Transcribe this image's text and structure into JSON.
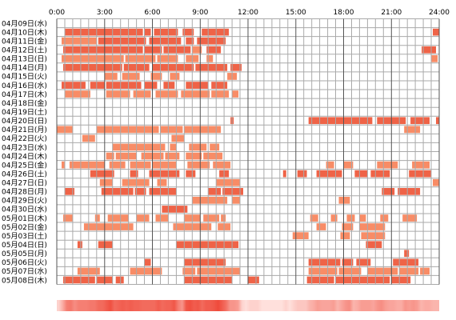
{
  "chart_data": {
    "type": "heatmap",
    "x_ticks": [
      "0:00",
      "3:00",
      "6:00",
      "9:00",
      "12:00",
      "15:00",
      "18:00",
      "21:00",
      "24:00"
    ],
    "x_range_hours": [
      0,
      24
    ],
    "grid": true,
    "colors": {
      "dark": "#ef6347",
      "light": "#f88c66",
      "grid_major": "#555555",
      "grid_minor": "#aaaaaa",
      "density_base": "#ffe0dc",
      "density_peak": "#ef4a3a"
    },
    "rows": [
      {
        "date": "04月09日(水)",
        "segments": []
      },
      {
        "date": "04月10日(木)",
        "segments": [
          [
            0.5,
            5.4,
            "dark"
          ],
          [
            5.5,
            5.9,
            "dark"
          ],
          [
            6.1,
            7.6,
            "dark"
          ],
          [
            7.9,
            8.6,
            "dark"
          ],
          [
            9.1,
            10.8,
            "dark"
          ],
          [
            23.6,
            24.0,
            "dark"
          ]
        ]
      },
      {
        "date": "04月11日(金)",
        "segments": [
          [
            0.3,
            2.5,
            "light"
          ],
          [
            2.6,
            5.6,
            "dark"
          ],
          [
            5.8,
            7.8,
            "dark"
          ],
          [
            8.1,
            8.6,
            "dark"
          ],
          [
            8.8,
            10.6,
            "dark"
          ]
        ]
      },
      {
        "date": "04月12日(土)",
        "segments": [
          [
            0.4,
            5.4,
            "dark"
          ],
          [
            5.5,
            6.6,
            "dark"
          ],
          [
            6.7,
            8.4,
            "dark"
          ],
          [
            8.5,
            9.1,
            "light"
          ],
          [
            9.4,
            10.3,
            "dark"
          ],
          [
            22.9,
            23.8,
            "dark"
          ]
        ]
      },
      {
        "date": "04月13日(日)",
        "segments": [
          [
            0.3,
            4.2,
            "light"
          ],
          [
            4.3,
            6.2,
            "light"
          ],
          [
            6.3,
            7.6,
            "light"
          ],
          [
            8.1,
            8.9,
            "light"
          ],
          [
            9.4,
            9.8,
            "light"
          ],
          [
            23.5,
            23.9,
            "light"
          ]
        ]
      },
      {
        "date": "04月14日(月)",
        "segments": [
          [
            0.4,
            4.1,
            "dark"
          ],
          [
            4.2,
            5.8,
            "dark"
          ],
          [
            6.0,
            8.6,
            "dark"
          ],
          [
            8.7,
            10.7,
            "dark"
          ],
          [
            10.9,
            11.6,
            "dark"
          ]
        ]
      },
      {
        "date": "04月15日(火)",
        "segments": [
          [
            3.0,
            3.8,
            "light"
          ],
          [
            4.1,
            5.2,
            "light"
          ],
          [
            5.9,
            6.6,
            "light"
          ],
          [
            7.1,
            7.7,
            "light"
          ],
          [
            10.7,
            11.3,
            "light"
          ]
        ]
      },
      {
        "date": "04月16日(水)",
        "segments": [
          [
            0.3,
            1.8,
            "dark"
          ],
          [
            2.1,
            3.0,
            "dark"
          ],
          [
            3.1,
            5.3,
            "dark"
          ],
          [
            5.5,
            6.3,
            "dark"
          ],
          [
            6.7,
            7.4,
            "dark"
          ],
          [
            8.1,
            9.5,
            "dark"
          ],
          [
            9.7,
            10.7,
            "dark"
          ]
        ]
      },
      {
        "date": "04月17日(木)",
        "segments": [
          [
            0.5,
            2.1,
            "light"
          ],
          [
            3.1,
            4.6,
            "light"
          ],
          [
            4.8,
            5.9,
            "light"
          ],
          [
            6.2,
            7.6,
            "light"
          ],
          [
            7.8,
            9.6,
            "light"
          ],
          [
            9.7,
            10.8,
            "light"
          ],
          [
            11.0,
            11.4,
            "light"
          ]
        ]
      },
      {
        "date": "04月18日(金)",
        "segments": []
      },
      {
        "date": "04月19日(土)",
        "segments": []
      },
      {
        "date": "04月20日(日)",
        "segments": [
          [
            10.9,
            11.1,
            "dark"
          ],
          [
            15.8,
            19.8,
            "dark"
          ],
          [
            20.1,
            21.9,
            "dark"
          ],
          [
            22.2,
            23.4,
            "dark"
          ],
          [
            23.8,
            24.0,
            "dark"
          ]
        ]
      },
      {
        "date": "04月21日(月)",
        "segments": [
          [
            0.0,
            1.0,
            "light"
          ],
          [
            2.5,
            6.4,
            "light"
          ],
          [
            6.5,
            7.9,
            "light"
          ],
          [
            8.0,
            10.3,
            "light"
          ],
          [
            21.8,
            22.8,
            "light"
          ]
        ]
      },
      {
        "date": "04月22日(火)",
        "segments": [
          [
            1.6,
            2.4,
            "light"
          ],
          [
            7.2,
            8.0,
            "light"
          ]
        ]
      },
      {
        "date": "04月23日(水)",
        "segments": [
          [
            3.5,
            6.8,
            "light"
          ],
          [
            7.1,
            7.5,
            "light"
          ],
          [
            8.3,
            9.4,
            "light"
          ],
          [
            9.6,
            10.2,
            "light"
          ]
        ]
      },
      {
        "date": "04月24日(木)",
        "segments": [
          [
            3.1,
            3.6,
            "light"
          ],
          [
            3.7,
            5.0,
            "light"
          ],
          [
            5.3,
            6.7,
            "light"
          ],
          [
            6.8,
            7.7,
            "light"
          ],
          [
            8.1,
            9.1,
            "light"
          ],
          [
            9.2,
            10.4,
            "light"
          ]
        ]
      },
      {
        "date": "04月25日(金)",
        "segments": [
          [
            0.3,
            0.5,
            "light"
          ],
          [
            0.8,
            3.0,
            "light"
          ],
          [
            3.3,
            4.3,
            "light"
          ],
          [
            4.6,
            5.9,
            "light"
          ],
          [
            6.0,
            7.5,
            "light"
          ],
          [
            8.2,
            9.6,
            "light"
          ],
          [
            9.8,
            10.9,
            "light"
          ],
          [
            16.9,
            17.4,
            "light"
          ],
          [
            18.0,
            18.6,
            "light"
          ],
          [
            20.1,
            21.4,
            "light"
          ],
          [
            22.3,
            23.4,
            "light"
          ]
        ]
      },
      {
        "date": "04月26日(土)",
        "segments": [
          [
            2.1,
            3.6,
            "dark"
          ],
          [
            4.6,
            5.1,
            "dark"
          ],
          [
            5.8,
            7.7,
            "dark"
          ],
          [
            8.1,
            8.7,
            "dark"
          ],
          [
            10.2,
            10.8,
            "dark"
          ],
          [
            14.2,
            14.4,
            "dark"
          ],
          [
            15.1,
            15.7,
            "dark"
          ],
          [
            16.3,
            17.9,
            "dark"
          ],
          [
            18.7,
            19.5,
            "dark"
          ],
          [
            19.7,
            20.9,
            "dark"
          ],
          [
            22.1,
            23.5,
            "dark"
          ]
        ]
      },
      {
        "date": "04月27日(日)",
        "segments": [
          [
            2.7,
            3.5,
            "light"
          ],
          [
            4.1,
            5.8,
            "light"
          ],
          [
            6.3,
            6.9,
            "light"
          ],
          [
            10.0,
            11.5,
            "light"
          ],
          [
            23.6,
            24.0,
            "light"
          ]
        ]
      },
      {
        "date": "04月28日(月)",
        "segments": [
          [
            0.5,
            1.1,
            "dark"
          ],
          [
            2.8,
            4.8,
            "dark"
          ],
          [
            4.9,
            5.6,
            "dark"
          ],
          [
            5.8,
            7.5,
            "dark"
          ],
          [
            9.5,
            10.3,
            "dark"
          ],
          [
            10.4,
            11.7,
            "dark"
          ],
          [
            20.4,
            21.2,
            "dark"
          ],
          [
            21.4,
            22.8,
            "dark"
          ]
        ]
      },
      {
        "date": "04月29日(火)",
        "segments": [
          [
            8.5,
            10.7,
            "light"
          ],
          [
            11.0,
            11.5,
            "light"
          ],
          [
            17.7,
            18.4,
            "light"
          ]
        ]
      },
      {
        "date": "04月30日(水)",
        "segments": [
          [
            6.6,
            8.2,
            "dark"
          ]
        ]
      },
      {
        "date": "05月01日(木)",
        "segments": [
          [
            0.4,
            1.0,
            "light"
          ],
          [
            2.4,
            2.7,
            "light"
          ],
          [
            3.2,
            4.5,
            "light"
          ],
          [
            5.0,
            5.8,
            "light"
          ],
          [
            6.2,
            7.0,
            "light"
          ],
          [
            8.0,
            9.0,
            "light"
          ],
          [
            9.2,
            10.2,
            "light"
          ],
          [
            10.3,
            10.6,
            "light"
          ],
          [
            15.9,
            16.4,
            "light"
          ],
          [
            17.2,
            17.6,
            "light"
          ],
          [
            18.2,
            18.7,
            "light"
          ],
          [
            19.0,
            19.4,
            "light"
          ],
          [
            20.3,
            20.8,
            "light"
          ],
          [
            21.7,
            22.6,
            "light"
          ]
        ]
      },
      {
        "date": "05月02日(金)",
        "segments": [
          [
            1.7,
            4.8,
            "light"
          ],
          [
            7.3,
            9.7,
            "light"
          ],
          [
            10.1,
            10.9,
            "light"
          ],
          [
            16.3,
            16.9,
            "light"
          ],
          [
            17.9,
            18.6,
            "light"
          ],
          [
            19.0,
            20.6,
            "light"
          ]
        ]
      },
      {
        "date": "05月03日(土)",
        "segments": [
          [
            14.8,
            15.8,
            "light"
          ],
          [
            17.8,
            18.4,
            "light"
          ],
          [
            19.1,
            20.6,
            "light"
          ]
        ]
      },
      {
        "date": "05月04日(日)",
        "segments": [
          [
            1.3,
            1.6,
            "dark"
          ],
          [
            2.6,
            3.5,
            "dark"
          ],
          [
            7.5,
            11.4,
            "dark"
          ],
          [
            19.4,
            20.4,
            "dark"
          ]
        ]
      },
      {
        "date": "05月05日(月)",
        "segments": [
          [
            21.8,
            22.1,
            "dark"
          ]
        ]
      },
      {
        "date": "05月06日(火)",
        "segments": [
          [
            5.5,
            5.9,
            "dark"
          ],
          [
            8.0,
            10.6,
            "dark"
          ],
          [
            15.8,
            17.8,
            "dark"
          ],
          [
            17.9,
            18.6,
            "dark"
          ],
          [
            18.8,
            19.7,
            "dark"
          ],
          [
            21.1,
            22.7,
            "dark"
          ]
        ]
      },
      {
        "date": "05月07日(水)",
        "segments": [
          [
            1.3,
            2.7,
            "light"
          ],
          [
            4.6,
            6.6,
            "light"
          ],
          [
            7.9,
            8.7,
            "light"
          ],
          [
            8.8,
            11.5,
            "light"
          ],
          [
            15.8,
            17.6,
            "light"
          ],
          [
            17.7,
            19.1,
            "light"
          ],
          [
            19.5,
            21.4,
            "light"
          ],
          [
            21.5,
            22.7,
            "light"
          ],
          [
            22.8,
            23.4,
            "light"
          ]
        ]
      },
      {
        "date": "05月08日(木)",
        "segments": [
          [
            0.4,
            2.4,
            "dark"
          ],
          [
            2.5,
            3.5,
            "dark"
          ],
          [
            3.7,
            4.2,
            "dark"
          ],
          [
            8.0,
            11.0,
            "dark"
          ],
          [
            12.0,
            12.7,
            "dark"
          ],
          [
            15.7,
            17.4,
            "dark"
          ],
          [
            17.5,
            20.9,
            "dark"
          ],
          [
            21.0,
            22.2,
            "dark"
          ]
        ]
      }
    ]
  }
}
